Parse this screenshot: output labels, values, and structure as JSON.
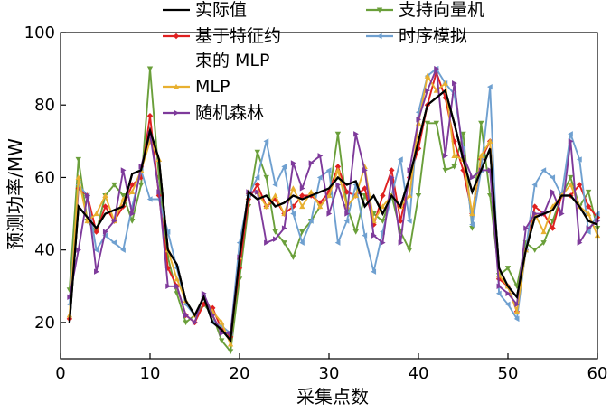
{
  "chart_data": {
    "type": "line",
    "xlabel": "采集点数",
    "ylabel": "预测功率/MW",
    "xlim": [
      0,
      60
    ],
    "ylim": [
      10,
      100
    ],
    "xticks": [
      0,
      10,
      20,
      30,
      40,
      50,
      60
    ],
    "yticks": [
      20,
      40,
      60,
      80,
      100
    ],
    "grid": false,
    "legend_position": "top",
    "x": [
      1,
      2,
      3,
      4,
      5,
      6,
      7,
      8,
      9,
      10,
      11,
      12,
      13,
      14,
      15,
      16,
      17,
      18,
      19,
      20,
      21,
      22,
      23,
      24,
      25,
      26,
      27,
      28,
      29,
      30,
      31,
      32,
      33,
      34,
      35,
      36,
      37,
      38,
      39,
      40,
      41,
      42,
      43,
      44,
      45,
      46,
      47,
      48,
      49,
      50,
      51,
      52,
      53,
      54,
      55,
      56,
      57,
      58,
      59,
      60
    ],
    "series": [
      {
        "name": "实际值",
        "color": "#000000",
        "marker": "none",
        "values": [
          20,
          52,
          49,
          46,
          50,
          51,
          52,
          61,
          62,
          73,
          65,
          40,
          36,
          26,
          22,
          27,
          20,
          18,
          15,
          38,
          56,
          54,
          55,
          52,
          53,
          55,
          54,
          55,
          56,
          57,
          60,
          58,
          59,
          52,
          55,
          50,
          55,
          52,
          60,
          70,
          80,
          82,
          84,
          75,
          65,
          56,
          62,
          68,
          35,
          30,
          27,
          40,
          49,
          50,
          51,
          55,
          55,
          52,
          48,
          47
        ],
        "label_keys": "legend.0"
      },
      {
        "name": "支持向量机",
        "color": "#6a9f3a",
        "marker": "triangle-down",
        "values": [
          29,
          65,
          48,
          45,
          55,
          58,
          55,
          48,
          58,
          90,
          60,
          38,
          28,
          20,
          22,
          25,
          22,
          15,
          12,
          32,
          52,
          67,
          60,
          45,
          42,
          38,
          45,
          48,
          52,
          55,
          72,
          52,
          45,
          55,
          50,
          48,
          55,
          45,
          40,
          55,
          75,
          75,
          62,
          63,
          72,
          46,
          75,
          55,
          33,
          35,
          30,
          42,
          40,
          42,
          48,
          55,
          60,
          52,
          56,
          46
        ]
      },
      {
        "name": "基于特征约束的MLP",
        "color": "#e02020",
        "marker": "diamond",
        "values": [
          21,
          57,
          55,
          45,
          52,
          48,
          52,
          58,
          60,
          77,
          55,
          35,
          30,
          22,
          20,
          25,
          24,
          18,
          16,
          35,
          54,
          58,
          52,
          54,
          50,
          52,
          55,
          55,
          53,
          56,
          63,
          56,
          55,
          57,
          47,
          55,
          62,
          48,
          60,
          68,
          80,
          89,
          82,
          70,
          62,
          50,
          65,
          70,
          32,
          30,
          23,
          40,
          52,
          50,
          46,
          55,
          55,
          58,
          52,
          49
        ]
      },
      {
        "name": "时序模拟",
        "color": "#6fa0d0",
        "marker": "triangle-left",
        "values": [
          25,
          58,
          55,
          40,
          44,
          42,
          40,
          52,
          62,
          54,
          54,
          45,
          35,
          25,
          22,
          27,
          20,
          19,
          17,
          42,
          55,
          60,
          70,
          58,
          63,
          50,
          42,
          48,
          60,
          62,
          42,
          48,
          58,
          44,
          34,
          45,
          55,
          65,
          48,
          78,
          88,
          90,
          86,
          83,
          68,
          47,
          62,
          85,
          28,
          25,
          21,
          40,
          58,
          62,
          60,
          55,
          72,
          65,
          45,
          50
        ]
      },
      {
        "name": "MLP",
        "color": "#e8b030",
        "marker": "triangle-up",
        "values": [
          22,
          60,
          48,
          50,
          55,
          48,
          54,
          56,
          62,
          70,
          65,
          40,
          32,
          26,
          22,
          27,
          23,
          20,
          14,
          38,
          56,
          56,
          52,
          55,
          50,
          57,
          52,
          56,
          52,
          55,
          62,
          52,
          55,
          63,
          48,
          52,
          55,
          52,
          55,
          75,
          88,
          84,
          86,
          66,
          65,
          50,
          66,
          70,
          33,
          30,
          23,
          40,
          50,
          45,
          52,
          55,
          58,
          52,
          50,
          44
        ]
      },
      {
        "name": "随机森林",
        "color": "#7e3a9b",
        "marker": "triangle-right",
        "values": [
          27,
          40,
          55,
          34,
          45,
          48,
          62,
          50,
          63,
          72,
          56,
          30,
          30,
          22,
          20,
          28,
          22,
          17,
          17,
          38,
          56,
          56,
          42,
          43,
          46,
          64,
          57,
          64,
          66,
          50,
          58,
          50,
          72,
          62,
          44,
          42,
          60,
          42,
          62,
          76,
          84,
          90,
          66,
          86,
          66,
          60,
          62,
          62,
          30,
          28,
          25,
          46,
          50,
          50,
          56,
          50,
          70,
          42,
          46,
          48
        ]
      }
    ]
  },
  "legend": [
    {
      "label": "实际值",
      "color": "#000000",
      "marker": "none"
    },
    {
      "label": "基于特征约\n束的 MLP",
      "color": "#e02020",
      "marker": "diamond"
    },
    {
      "label": "MLP",
      "color": "#e8b030",
      "marker": "triangle-up"
    },
    {
      "label": "随机森林",
      "color": "#7e3a9b",
      "marker": "triangle-right"
    },
    {
      "label": "支持向量机",
      "color": "#6a9f3a",
      "marker": "triangle-down"
    },
    {
      "label": "时序模拟",
      "color": "#6fa0d0",
      "marker": "triangle-left"
    }
  ]
}
